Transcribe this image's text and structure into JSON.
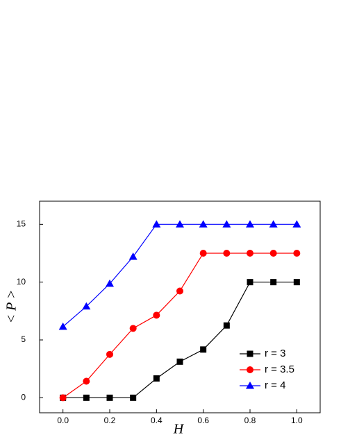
{
  "chart_data": {
    "type": "line",
    "x": [
      0.0,
      0.1,
      0.2,
      0.3,
      0.4,
      0.5,
      0.6,
      0.7,
      0.8,
      0.9,
      1.0
    ],
    "series": [
      {
        "name": "r = 3",
        "color": "#000000",
        "marker": "square",
        "values": [
          0,
          0,
          0,
          0,
          1.67,
          3.12,
          4.17,
          6.25,
          10,
          10,
          10
        ]
      },
      {
        "name": "r = 3.5",
        "color": "#ff0000",
        "marker": "circle",
        "values": [
          0,
          1.43,
          3.75,
          6.0,
          7.14,
          9.23,
          12.5,
          12.5,
          12.5,
          12.5,
          12.5
        ]
      },
      {
        "name": "r = 4",
        "color": "#0000ff",
        "marker": "triangle",
        "values": [
          6.15,
          7.9,
          9.87,
          12.2,
          15,
          15,
          15,
          15,
          15,
          15,
          15
        ]
      }
    ],
    "xlabel": "H",
    "ylabel": "< P >",
    "xlim": [
      -0.1,
      1.1
    ],
    "ylim": [
      -1.3,
      17
    ],
    "xticks": [
      {
        "value": 0,
        "label": "0.0"
      },
      0.2,
      0.4,
      0.6,
      0.8,
      {
        "value": 1,
        "label": "1.0"
      }
    ],
    "yticks": [
      0,
      5,
      10,
      15
    ],
    "legend": "lower right"
  }
}
